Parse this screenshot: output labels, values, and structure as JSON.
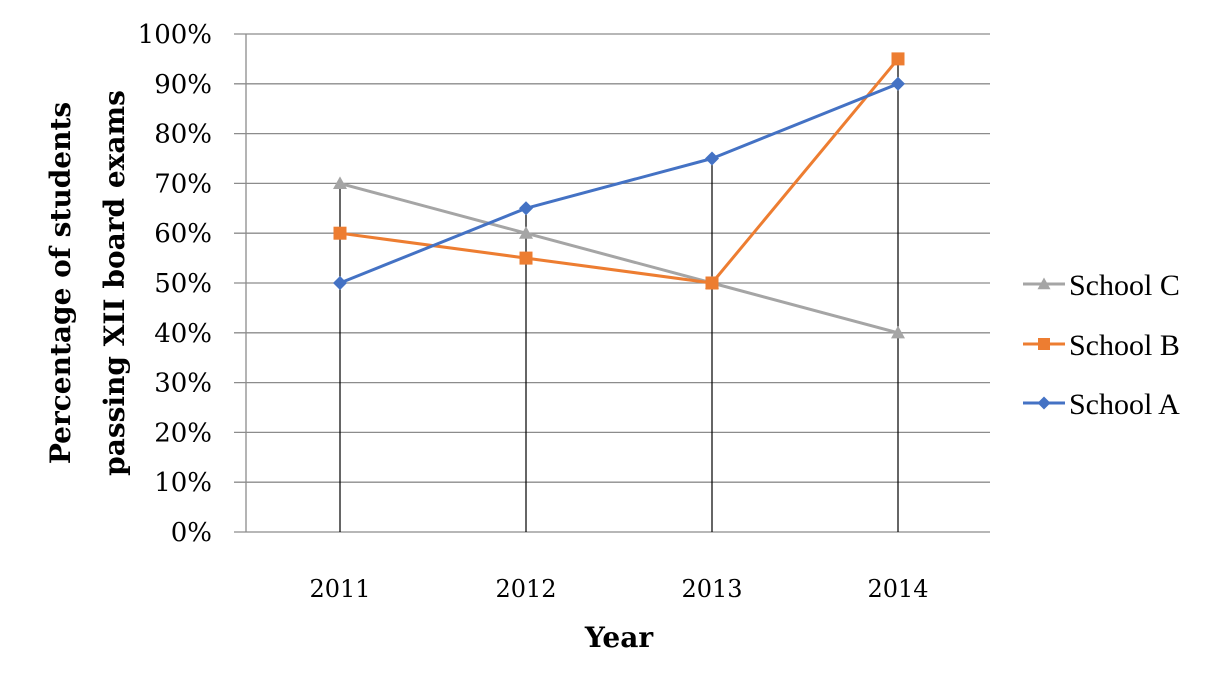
{
  "chart_data": {
    "type": "line",
    "title": "",
    "xlabel": "Year",
    "ylabel": "Percentage of students passing XII board exams",
    "ylabel_lines": [
      "Percentage of students",
      "passing XII board exams"
    ],
    "categories": [
      "2011",
      "2012",
      "2013",
      "2014"
    ],
    "yticks": [
      "0%",
      "10%",
      "20%",
      "30%",
      "40%",
      "50%",
      "60%",
      "70%",
      "80%",
      "90%",
      "100%"
    ],
    "ylim": [
      0,
      100
    ],
    "grid": true,
    "drop_lines": true,
    "legend_position": "right",
    "series": [
      {
        "name": "School C",
        "values": [
          70,
          60,
          50,
          40
        ],
        "color": "#a5a5a5",
        "marker": "triangle"
      },
      {
        "name": "School B",
        "values": [
          60,
          55,
          50,
          95
        ],
        "color": "#ed7d31",
        "marker": "square"
      },
      {
        "name": "School A",
        "values": [
          50,
          65,
          75,
          90
        ],
        "color": "#4472c4",
        "marker": "diamond"
      }
    ]
  }
}
